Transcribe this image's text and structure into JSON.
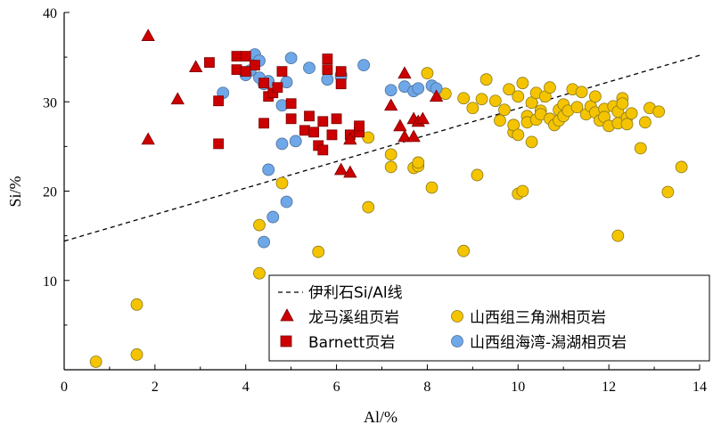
{
  "chart_data": {
    "type": "scatter",
    "xlabel": "Al/%",
    "ylabel": "Si/%",
    "xlim": [
      0,
      14
    ],
    "ylim": [
      0,
      40
    ],
    "xticks": [
      "0",
      "2",
      "4",
      "6",
      "8",
      "10",
      "12",
      "14"
    ],
    "yticks": [
      "10",
      "20",
      "30",
      "40"
    ],
    "reference_line": {
      "name": "伊利石Si/Al线",
      "x": [
        0,
        14
      ],
      "y": [
        14.4,
        35.2
      ],
      "style": "dashed"
    },
    "legend_placement": "bottom-right",
    "series": [
      {
        "name": "龙马溪组页岩",
        "marker": "triangle",
        "color": "#cc0000",
        "points": [
          [
            1.85,
            37.4
          ],
          [
            1.85,
            25.8
          ],
          [
            2.9,
            33.9
          ],
          [
            2.5,
            30.3
          ],
          [
            6.1,
            22.4
          ],
          [
            6.3,
            22.1
          ],
          [
            6.3,
            25.8
          ],
          [
            7.2,
            29.6
          ],
          [
            7.4,
            27.3
          ],
          [
            7.5,
            26.1
          ],
          [
            7.5,
            33.2
          ],
          [
            7.7,
            26.1
          ],
          [
            7.7,
            28.1
          ],
          [
            7.8,
            27.8
          ],
          [
            7.9,
            28.1
          ],
          [
            8.2,
            30.6
          ]
        ]
      },
      {
        "name": "Barnett页岩",
        "marker": "square",
        "color": "#cc0000",
        "points": [
          [
            3.2,
            34.4
          ],
          [
            3.4,
            30.1
          ],
          [
            3.4,
            25.3
          ],
          [
            3.8,
            35.1
          ],
          [
            3.8,
            33.6
          ],
          [
            4.0,
            33.4
          ],
          [
            4.0,
            35.1
          ],
          [
            4.2,
            34.1
          ],
          [
            4.4,
            27.6
          ],
          [
            4.4,
            32.1
          ],
          [
            4.5,
            30.6
          ],
          [
            4.6,
            31.0
          ],
          [
            4.7,
            31.6
          ],
          [
            4.8,
            33.4
          ],
          [
            5.0,
            29.8
          ],
          [
            5.0,
            28.1
          ],
          [
            5.3,
            26.8
          ],
          [
            5.4,
            28.4
          ],
          [
            5.5,
            26.6
          ],
          [
            5.6,
            25.1
          ],
          [
            5.7,
            24.6
          ],
          [
            5.7,
            27.8
          ],
          [
            5.8,
            33.6
          ],
          [
            5.9,
            26.3
          ],
          [
            6.0,
            28.1
          ],
          [
            6.1,
            33.4
          ],
          [
            6.1,
            32.0
          ],
          [
            6.3,
            26.3
          ],
          [
            6.5,
            26.6
          ],
          [
            6.5,
            27.3
          ],
          [
            5.8,
            34.8
          ]
        ]
      },
      {
        "name": "山西组三角洲相页岩",
        "marker": "circle",
        "color": "#f5c400",
        "points": [
          [
            0.7,
            0.9
          ],
          [
            1.6,
            1.7
          ],
          [
            1.6,
            7.3
          ],
          [
            4.3,
            10.8
          ],
          [
            4.3,
            16.2
          ],
          [
            4.8,
            20.9
          ],
          [
            5.6,
            13.2
          ],
          [
            6.7,
            18.2
          ],
          [
            6.7,
            26.0
          ],
          [
            7.2,
            22.7
          ],
          [
            7.2,
            24.1
          ],
          [
            7.7,
            22.6
          ],
          [
            7.8,
            22.8
          ],
          [
            7.8,
            23.2
          ],
          [
            8.0,
            33.2
          ],
          [
            8.1,
            20.4
          ],
          [
            8.4,
            30.9
          ],
          [
            8.8,
            13.3
          ],
          [
            8.8,
            30.4
          ],
          [
            9.0,
            29.3
          ],
          [
            9.1,
            21.8
          ],
          [
            9.2,
            30.3
          ],
          [
            9.3,
            32.5
          ],
          [
            9.5,
            30.1
          ],
          [
            9.6,
            27.9
          ],
          [
            9.7,
            29.1
          ],
          [
            9.8,
            31.4
          ],
          [
            9.9,
            26.6
          ],
          [
            9.9,
            27.4
          ],
          [
            10.0,
            30.6
          ],
          [
            10.0,
            26.3
          ],
          [
            10.0,
            19.7
          ],
          [
            10.1,
            20.0
          ],
          [
            10.1,
            32.1
          ],
          [
            10.2,
            28.4
          ],
          [
            10.2,
            27.7
          ],
          [
            10.3,
            29.9
          ],
          [
            10.3,
            25.5
          ],
          [
            10.4,
            28.0
          ],
          [
            10.4,
            31.0
          ],
          [
            10.5,
            29.0
          ],
          [
            10.5,
            28.6
          ],
          [
            10.6,
            30.6
          ],
          [
            10.7,
            28.1
          ],
          [
            10.7,
            31.6
          ],
          [
            10.8,
            27.4
          ],
          [
            10.9,
            27.9
          ],
          [
            10.9,
            29.1
          ],
          [
            11.0,
            29.7
          ],
          [
            11.0,
            28.4
          ],
          [
            11.1,
            29.0
          ],
          [
            11.2,
            31.4
          ],
          [
            11.3,
            29.4
          ],
          [
            11.4,
            31.1
          ],
          [
            11.5,
            28.6
          ],
          [
            11.6,
            29.5
          ],
          [
            11.7,
            30.6
          ],
          [
            11.7,
            28.8
          ],
          [
            11.8,
            27.9
          ],
          [
            11.9,
            29.2
          ],
          [
            11.9,
            28.3
          ],
          [
            12.0,
            27.3
          ],
          [
            12.1,
            29.5
          ],
          [
            12.2,
            28.9
          ],
          [
            12.2,
            27.6
          ],
          [
            12.2,
            15.0
          ],
          [
            12.3,
            30.4
          ],
          [
            12.3,
            29.8
          ],
          [
            12.4,
            28.2
          ],
          [
            12.4,
            27.5
          ],
          [
            12.5,
            28.7
          ],
          [
            12.7,
            24.8
          ],
          [
            12.8,
            27.7
          ],
          [
            12.9,
            29.3
          ],
          [
            13.1,
            28.9
          ],
          [
            13.3,
            19.9
          ],
          [
            13.6,
            22.7
          ]
        ]
      },
      {
        "name": "山西组海湾-潟湖相页岩",
        "marker": "circle",
        "color": "#6fa8e8",
        "points": [
          [
            3.5,
            31.0
          ],
          [
            4.2,
            35.3
          ],
          [
            4.3,
            34.6
          ],
          [
            4.4,
            32.0
          ],
          [
            4.4,
            14.3
          ],
          [
            4.5,
            32.3
          ],
          [
            4.5,
            22.4
          ],
          [
            4.6,
            17.1
          ],
          [
            4.8,
            29.6
          ],
          [
            4.9,
            32.2
          ],
          [
            5.0,
            34.9
          ],
          [
            4.8,
            25.3
          ],
          [
            4.9,
            18.8
          ],
          [
            5.1,
            25.6
          ],
          [
            5.4,
            33.8
          ],
          [
            5.8,
            32.5
          ],
          [
            6.1,
            33.0
          ],
          [
            6.1,
            32.8
          ],
          [
            6.6,
            34.1
          ],
          [
            7.5,
            31.7
          ],
          [
            7.7,
            31.2
          ],
          [
            7.8,
            31.5
          ],
          [
            8.1,
            31.8
          ],
          [
            8.2,
            31.5
          ],
          [
            4.3,
            32.7
          ],
          [
            4.1,
            33.5
          ],
          [
            4.0,
            33.0
          ],
          [
            7.2,
            31.3
          ]
        ]
      }
    ]
  }
}
